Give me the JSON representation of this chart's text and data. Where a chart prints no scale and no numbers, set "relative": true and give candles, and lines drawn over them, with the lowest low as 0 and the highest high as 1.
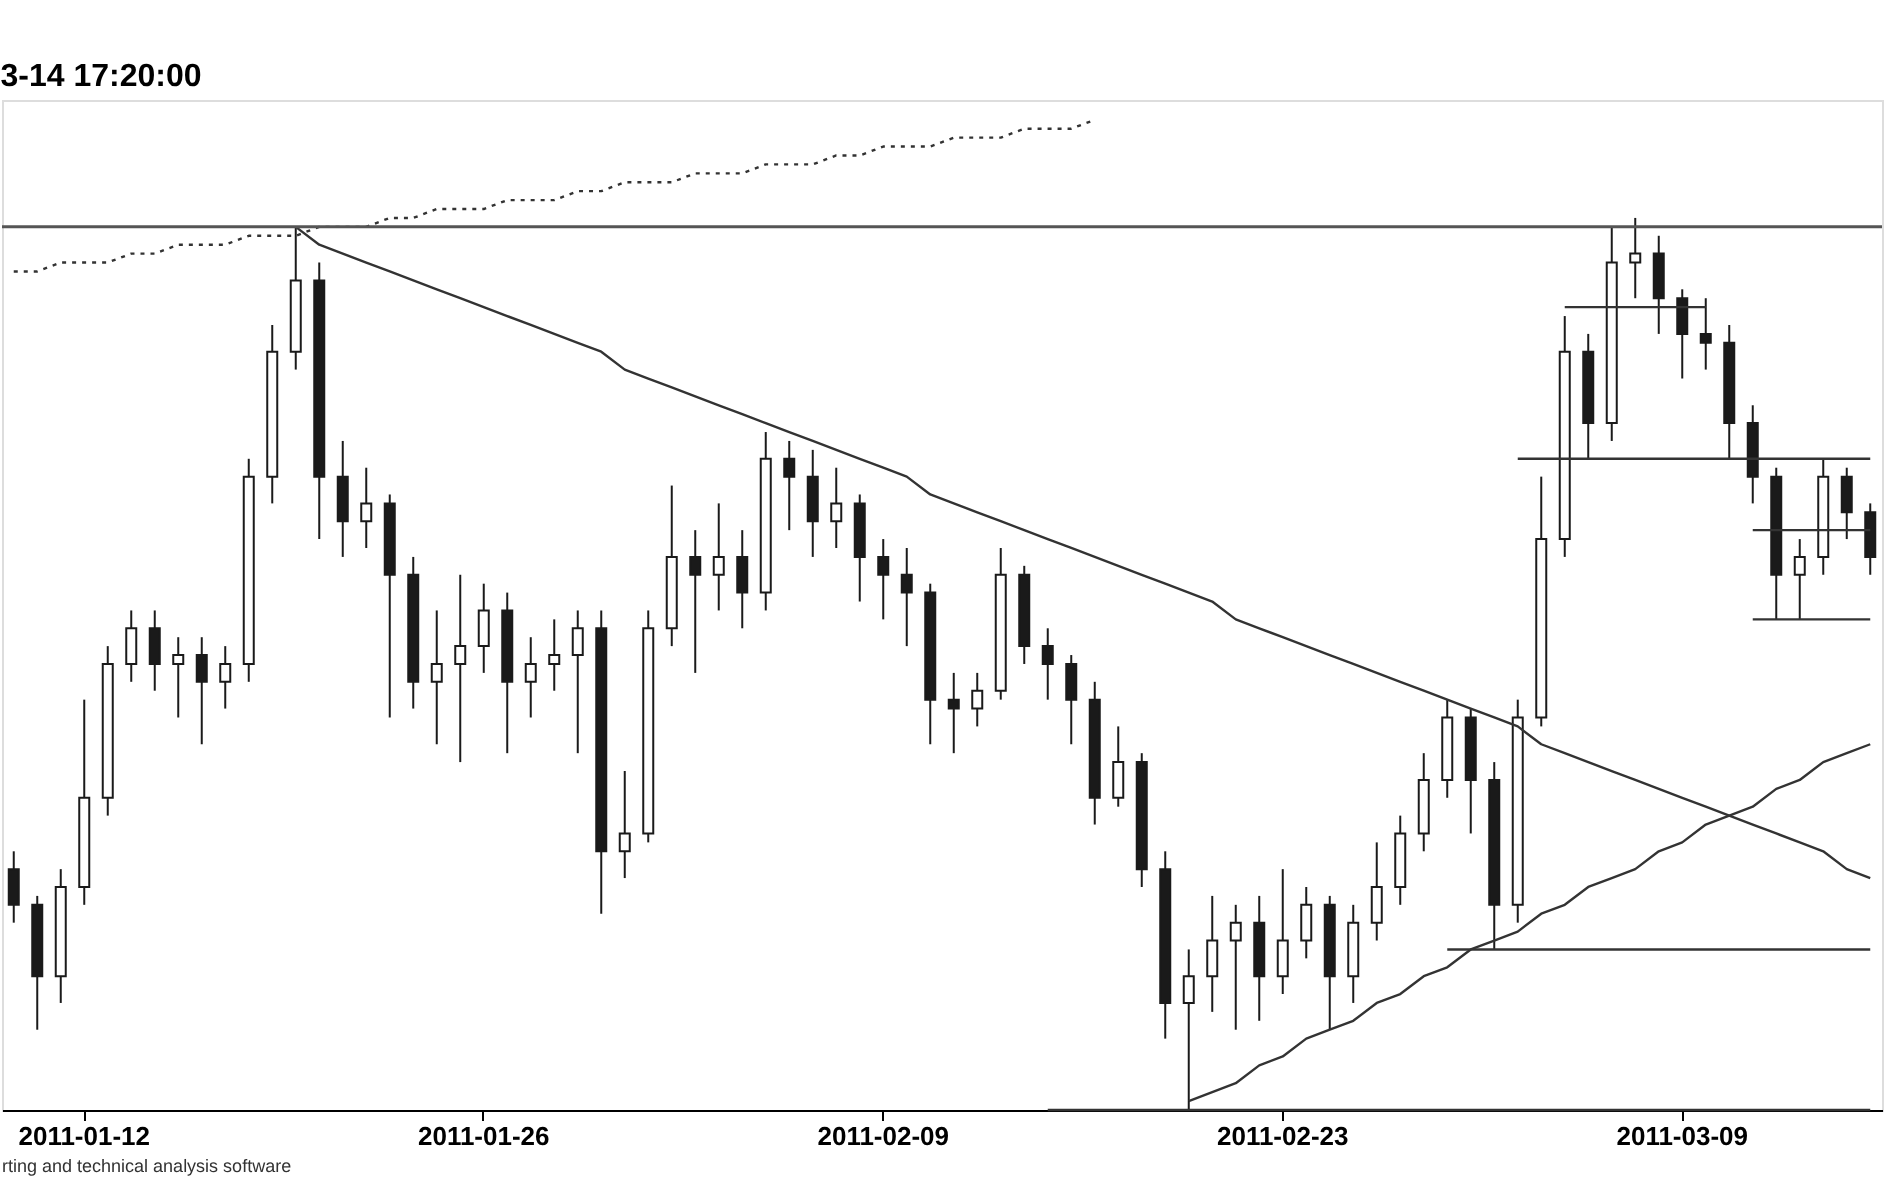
{
  "chart_data": {
    "type": "candlestick",
    "relative": true,
    "title": "3-14 17:20:00",
    "color": "#1a1a1a",
    "annotations": [
      "rting and technical analysis software"
    ],
    "categories": [
      null,
      null,
      null,
      "2011-01-12",
      null,
      null,
      null,
      null,
      null,
      null,
      null,
      null,
      null,
      null,
      null,
      null,
      null,
      null,
      null,
      null,
      "2011-01-26",
      null,
      null,
      null,
      null,
      null,
      null,
      null,
      null,
      null,
      null,
      null,
      null,
      null,
      null,
      null,
      null,
      "2011-02-09",
      null,
      null,
      null,
      null,
      null,
      null,
      null,
      null,
      null,
      null,
      null,
      null,
      null,
      null,
      null,
      null,
      "2011-02-23",
      null,
      null,
      null,
      null,
      null,
      null,
      null,
      null,
      null,
      null,
      null,
      null,
      null,
      null,
      null,
      null,
      "2011-03-09",
      null,
      null,
      null,
      null,
      null,
      null,
      null,
      null
    ],
    "ohlc": [
      [
        0.27,
        0.29,
        0.21,
        0.23
      ],
      [
        0.23,
        0.24,
        0.09,
        0.15
      ],
      [
        0.15,
        0.27,
        0.12,
        0.25
      ],
      [
        0.25,
        0.46,
        0.23,
        0.35
      ],
      [
        0.35,
        0.52,
        0.33,
        0.5
      ],
      [
        0.5,
        0.56,
        0.48,
        0.54
      ],
      [
        0.54,
        0.56,
        0.47,
        0.5
      ],
      [
        0.5,
        0.53,
        0.44,
        0.51
      ],
      [
        0.51,
        0.53,
        0.41,
        0.48
      ],
      [
        0.48,
        0.52,
        0.45,
        0.5
      ],
      [
        0.5,
        0.73,
        0.48,
        0.71
      ],
      [
        0.71,
        0.88,
        0.68,
        0.85
      ],
      [
        0.85,
        0.99,
        0.83,
        0.93
      ],
      [
        0.93,
        0.95,
        0.64,
        0.71
      ],
      [
        0.71,
        0.75,
        0.62,
        0.66
      ],
      [
        0.66,
        0.72,
        0.63,
        0.68
      ],
      [
        0.68,
        0.69,
        0.44,
        0.6
      ],
      [
        0.6,
        0.62,
        0.45,
        0.48
      ],
      [
        0.48,
        0.56,
        0.41,
        0.5
      ],
      [
        0.5,
        0.6,
        0.39,
        0.52
      ],
      [
        0.52,
        0.59,
        0.49,
        0.56
      ],
      [
        0.56,
        0.58,
        0.4,
        0.48
      ],
      [
        0.48,
        0.53,
        0.44,
        0.5
      ],
      [
        0.5,
        0.55,
        0.47,
        0.51
      ],
      [
        0.51,
        0.56,
        0.4,
        0.54
      ],
      [
        0.54,
        0.56,
        0.22,
        0.29
      ],
      [
        0.29,
        0.38,
        0.26,
        0.31
      ],
      [
        0.31,
        0.56,
        0.3,
        0.54
      ],
      [
        0.54,
        0.7,
        0.52,
        0.62
      ],
      [
        0.62,
        0.65,
        0.49,
        0.6
      ],
      [
        0.6,
        0.68,
        0.56,
        0.62
      ],
      [
        0.62,
        0.65,
        0.54,
        0.58
      ],
      [
        0.58,
        0.76,
        0.56,
        0.73
      ],
      [
        0.73,
        0.75,
        0.65,
        0.71
      ],
      [
        0.71,
        0.74,
        0.62,
        0.66
      ],
      [
        0.66,
        0.72,
        0.63,
        0.68
      ],
      [
        0.68,
        0.69,
        0.57,
        0.62
      ],
      [
        0.62,
        0.64,
        0.55,
        0.6
      ],
      [
        0.6,
        0.63,
        0.52,
        0.58
      ],
      [
        0.58,
        0.59,
        0.41,
        0.46
      ],
      [
        0.46,
        0.49,
        0.4,
        0.45
      ],
      [
        0.45,
        0.49,
        0.43,
        0.47
      ],
      [
        0.47,
        0.63,
        0.46,
        0.6
      ],
      [
        0.6,
        0.61,
        0.5,
        0.52
      ],
      [
        0.52,
        0.54,
        0.46,
        0.5
      ],
      [
        0.5,
        0.51,
        0.41,
        0.46
      ],
      [
        0.46,
        0.48,
        0.32,
        0.35
      ],
      [
        0.35,
        0.43,
        0.34,
        0.39
      ],
      [
        0.39,
        0.4,
        0.25,
        0.27
      ],
      [
        0.27,
        0.29,
        0.08,
        0.12
      ],
      [
        0.12,
        0.18,
        0.0,
        0.15
      ],
      [
        0.15,
        0.24,
        0.11,
        0.19
      ],
      [
        0.19,
        0.23,
        0.09,
        0.21
      ],
      [
        0.21,
        0.24,
        0.1,
        0.15
      ],
      [
        0.15,
        0.27,
        0.13,
        0.19
      ],
      [
        0.19,
        0.25,
        0.17,
        0.23
      ],
      [
        0.23,
        0.24,
        0.09,
        0.15
      ],
      [
        0.15,
        0.23,
        0.12,
        0.21
      ],
      [
        0.21,
        0.3,
        0.19,
        0.25
      ],
      [
        0.25,
        0.33,
        0.23,
        0.31
      ],
      [
        0.31,
        0.4,
        0.29,
        0.37
      ],
      [
        0.37,
        0.46,
        0.35,
        0.44
      ],
      [
        0.44,
        0.45,
        0.31,
        0.37
      ],
      [
        0.37,
        0.39,
        0.18,
        0.23
      ],
      [
        0.23,
        0.46,
        0.21,
        0.44
      ],
      [
        0.44,
        0.71,
        0.43,
        0.64
      ],
      [
        0.64,
        0.89,
        0.62,
        0.85
      ],
      [
        0.85,
        0.87,
        0.73,
        0.77
      ],
      [
        0.77,
        0.99,
        0.75,
        0.95
      ],
      [
        0.95,
        1.0,
        0.91,
        0.96
      ],
      [
        0.96,
        0.98,
        0.87,
        0.91
      ],
      [
        0.91,
        0.92,
        0.82,
        0.87
      ],
      [
        0.87,
        0.91,
        0.83,
        0.86
      ],
      [
        0.86,
        0.88,
        0.73,
        0.77
      ],
      [
        0.77,
        0.79,
        0.68,
        0.71
      ],
      [
        0.71,
        0.72,
        0.55,
        0.6
      ],
      [
        0.6,
        0.64,
        0.55,
        0.62
      ],
      [
        0.62,
        0.73,
        0.6,
        0.71
      ],
      [
        0.71,
        0.72,
        0.64,
        0.67
      ],
      [
        0.67,
        0.68,
        0.6,
        0.62
      ]
    ],
    "series": [
      {
        "type": "line",
        "color": "#333333",
        "line_style": "dotted",
        "values": [
          0.94,
          0.94,
          0.95,
          0.95,
          0.95,
          0.96,
          0.96,
          0.97,
          0.97,
          0.97,
          0.98,
          0.98,
          0.98,
          0.99,
          0.99,
          0.99,
          1.0,
          1.0,
          1.01,
          1.01,
          1.01,
          1.02,
          1.02,
          1.02,
          1.03,
          1.03,
          1.04,
          1.04,
          1.04,
          1.05,
          1.05,
          1.05,
          1.06,
          1.06,
          1.06,
          1.07,
          1.07,
          1.08,
          1.08,
          1.08,
          1.09,
          1.09,
          1.09,
          1.1,
          1.1,
          1.1,
          1.11,
          null,
          null,
          null,
          null,
          null,
          null,
          null,
          null,
          null,
          null,
          null,
          null,
          null,
          null,
          null,
          null,
          null,
          null,
          null,
          null,
          null,
          null,
          null,
          null,
          null,
          null,
          null,
          null,
          null,
          null,
          null,
          null,
          null
        ]
      },
      {
        "type": "line",
        "color": "#333333",
        "line_style": "solid",
        "values": [
          null,
          null,
          null,
          null,
          null,
          null,
          null,
          null,
          null,
          null,
          null,
          null,
          0.99,
          0.97,
          0.96,
          0.95,
          0.94,
          0.93,
          0.92,
          0.91,
          0.9,
          0.89,
          0.88,
          0.87,
          0.86,
          0.85,
          0.83,
          0.82,
          0.81,
          0.8,
          0.79,
          0.78,
          0.77,
          0.76,
          0.75,
          0.74,
          0.73,
          0.72,
          0.71,
          0.69,
          0.68,
          0.67,
          0.66,
          0.65,
          0.64,
          0.63,
          0.62,
          0.61,
          0.6,
          0.59,
          0.58,
          0.57,
          0.55,
          0.54,
          0.53,
          0.52,
          0.51,
          0.5,
          0.49,
          0.48,
          0.47,
          0.46,
          0.45,
          0.44,
          0.43,
          0.41,
          0.4,
          0.39,
          0.38,
          0.37,
          0.36,
          0.35,
          0.34,
          0.33,
          0.32,
          0.31,
          0.3,
          0.29,
          0.27,
          0.26
        ]
      },
      {
        "type": "line",
        "color": "#333333",
        "line_style": "solid",
        "values": [
          null,
          null,
          null,
          null,
          null,
          null,
          null,
          null,
          null,
          null,
          null,
          null,
          null,
          null,
          null,
          null,
          null,
          null,
          null,
          null,
          null,
          null,
          null,
          null,
          null,
          null,
          null,
          null,
          null,
          null,
          null,
          null,
          null,
          null,
          null,
          null,
          null,
          null,
          null,
          null,
          null,
          null,
          null,
          null,
          null,
          null,
          null,
          null,
          null,
          null,
          0.01,
          0.02,
          0.03,
          0.05,
          0.06,
          0.08,
          0.09,
          0.1,
          0.12,
          0.13,
          0.15,
          0.16,
          0.18,
          0.19,
          0.2,
          0.22,
          0.23,
          0.25,
          0.26,
          0.27,
          0.29,
          0.3,
          0.32,
          0.33,
          0.34,
          0.36,
          0.37,
          0.39,
          0.4,
          0.41
        ]
      },
      {
        "type": "line",
        "color": "#333333",
        "line_style": "solid",
        "values": [
          null,
          null,
          null,
          null,
          null,
          null,
          null,
          null,
          null,
          null,
          null,
          null,
          null,
          null,
          null,
          null,
          null,
          null,
          null,
          null,
          null,
          null,
          null,
          null,
          null,
          null,
          null,
          null,
          null,
          null,
          null,
          null,
          null,
          null,
          null,
          null,
          null,
          null,
          null,
          null,
          null,
          null,
          null,
          null,
          null,
          null,
          null,
          null,
          null,
          null,
          null,
          null,
          null,
          null,
          null,
          null,
          null,
          null,
          null,
          null,
          null,
          null,
          null,
          null,
          null,
          null,
          0.9,
          0.9,
          0.9,
          0.9,
          0.9,
          0.9,
          0.9,
          null,
          null,
          null,
          null,
          null,
          null,
          null
        ]
      },
      {
        "type": "line",
        "color": "#333333",
        "line_style": "solid",
        "values": [
          null,
          null,
          null,
          null,
          null,
          null,
          null,
          null,
          null,
          null,
          null,
          null,
          null,
          null,
          null,
          null,
          null,
          null,
          null,
          null,
          null,
          null,
          null,
          null,
          null,
          null,
          null,
          null,
          null,
          null,
          null,
          null,
          null,
          null,
          null,
          null,
          null,
          null,
          null,
          null,
          null,
          null,
          null,
          null,
          null,
          null,
          null,
          null,
          null,
          null,
          null,
          null,
          null,
          null,
          null,
          null,
          null,
          null,
          null,
          null,
          null,
          null,
          null,
          null,
          0.73,
          0.73,
          0.73,
          0.73,
          0.73,
          0.73,
          0.73,
          0.73,
          0.73,
          0.73,
          0.73,
          0.73,
          0.73,
          0.73,
          0.73,
          0.73
        ]
      },
      {
        "type": "line",
        "color": "#333333",
        "line_style": "solid",
        "values": [
          null,
          null,
          null,
          null,
          null,
          null,
          null,
          null,
          null,
          null,
          null,
          null,
          null,
          null,
          null,
          null,
          null,
          null,
          null,
          null,
          null,
          null,
          null,
          null,
          null,
          null,
          null,
          null,
          null,
          null,
          null,
          null,
          null,
          null,
          null,
          null,
          null,
          null,
          null,
          null,
          null,
          null,
          null,
          null,
          null,
          null,
          null,
          null,
          null,
          null,
          null,
          null,
          null,
          null,
          null,
          null,
          null,
          null,
          null,
          null,
          null,
          null,
          null,
          null,
          null,
          null,
          null,
          null,
          null,
          null,
          null,
          null,
          null,
          null,
          0.65,
          0.65,
          0.65,
          0.65,
          0.65,
          0.65
        ]
      },
      {
        "type": "line",
        "color": "#333333",
        "line_style": "solid",
        "values": [
          null,
          null,
          null,
          null,
          null,
          null,
          null,
          null,
          null,
          null,
          null,
          null,
          null,
          null,
          null,
          null,
          null,
          null,
          null,
          null,
          null,
          null,
          null,
          null,
          null,
          null,
          null,
          null,
          null,
          null,
          null,
          null,
          null,
          null,
          null,
          null,
          null,
          null,
          null,
          null,
          null,
          null,
          null,
          null,
          null,
          null,
          null,
          null,
          null,
          null,
          null,
          null,
          null,
          null,
          null,
          null,
          null,
          null,
          null,
          null,
          null,
          null,
          null,
          null,
          null,
          null,
          null,
          null,
          null,
          null,
          null,
          null,
          null,
          null,
          0.55,
          0.55,
          0.55,
          0.55,
          0.55,
          0.55
        ]
      },
      {
        "type": "line",
        "color": "#333333",
        "line_style": "solid",
        "values": [
          null,
          null,
          null,
          null,
          null,
          null,
          null,
          null,
          null,
          null,
          null,
          null,
          null,
          null,
          null,
          null,
          null,
          null,
          null,
          null,
          null,
          null,
          null,
          null,
          null,
          null,
          null,
          null,
          null,
          null,
          null,
          null,
          null,
          null,
          null,
          null,
          null,
          null,
          null,
          null,
          null,
          null,
          null,
          null,
          null,
          null,
          null,
          null,
          null,
          null,
          null,
          null,
          null,
          null,
          null,
          null,
          null,
          null,
          null,
          null,
          null,
          0.18,
          0.18,
          0.18,
          0.18,
          0.18,
          0.18,
          0.18,
          0.18,
          0.18,
          0.18,
          0.18,
          0.18,
          0.18,
          0.18,
          0.18,
          0.18,
          0.18,
          0.18,
          0.18
        ]
      },
      {
        "type": "line",
        "color": "#333333",
        "line_style": "solid",
        "values": [
          null,
          null,
          null,
          null,
          null,
          null,
          null,
          null,
          null,
          null,
          null,
          null,
          null,
          null,
          null,
          null,
          null,
          null,
          null,
          null,
          null,
          null,
          null,
          null,
          null,
          null,
          null,
          null,
          null,
          null,
          null,
          null,
          null,
          null,
          null,
          null,
          null,
          null,
          null,
          null,
          null,
          null,
          null,
          null,
          0.0,
          0.0,
          0.0,
          0.0,
          0.0,
          0.0,
          0.0,
          0.0,
          0.0,
          0.0,
          0.0,
          0.0,
          0.0,
          0.0,
          0.0,
          0.0,
          0.0,
          0.0,
          0.0,
          0.0,
          0.0,
          0.0,
          0.0,
          0.0,
          0.0,
          0.0,
          0.0,
          0.0,
          0.0,
          0.0,
          0.0,
          0.0,
          0.0,
          0.0,
          0.0,
          0.0
        ]
      }
    ],
    "ref_lines": [
      {
        "axis": "y",
        "value": 0.99,
        "color": "#555555",
        "line_style": "solid"
      }
    ]
  }
}
